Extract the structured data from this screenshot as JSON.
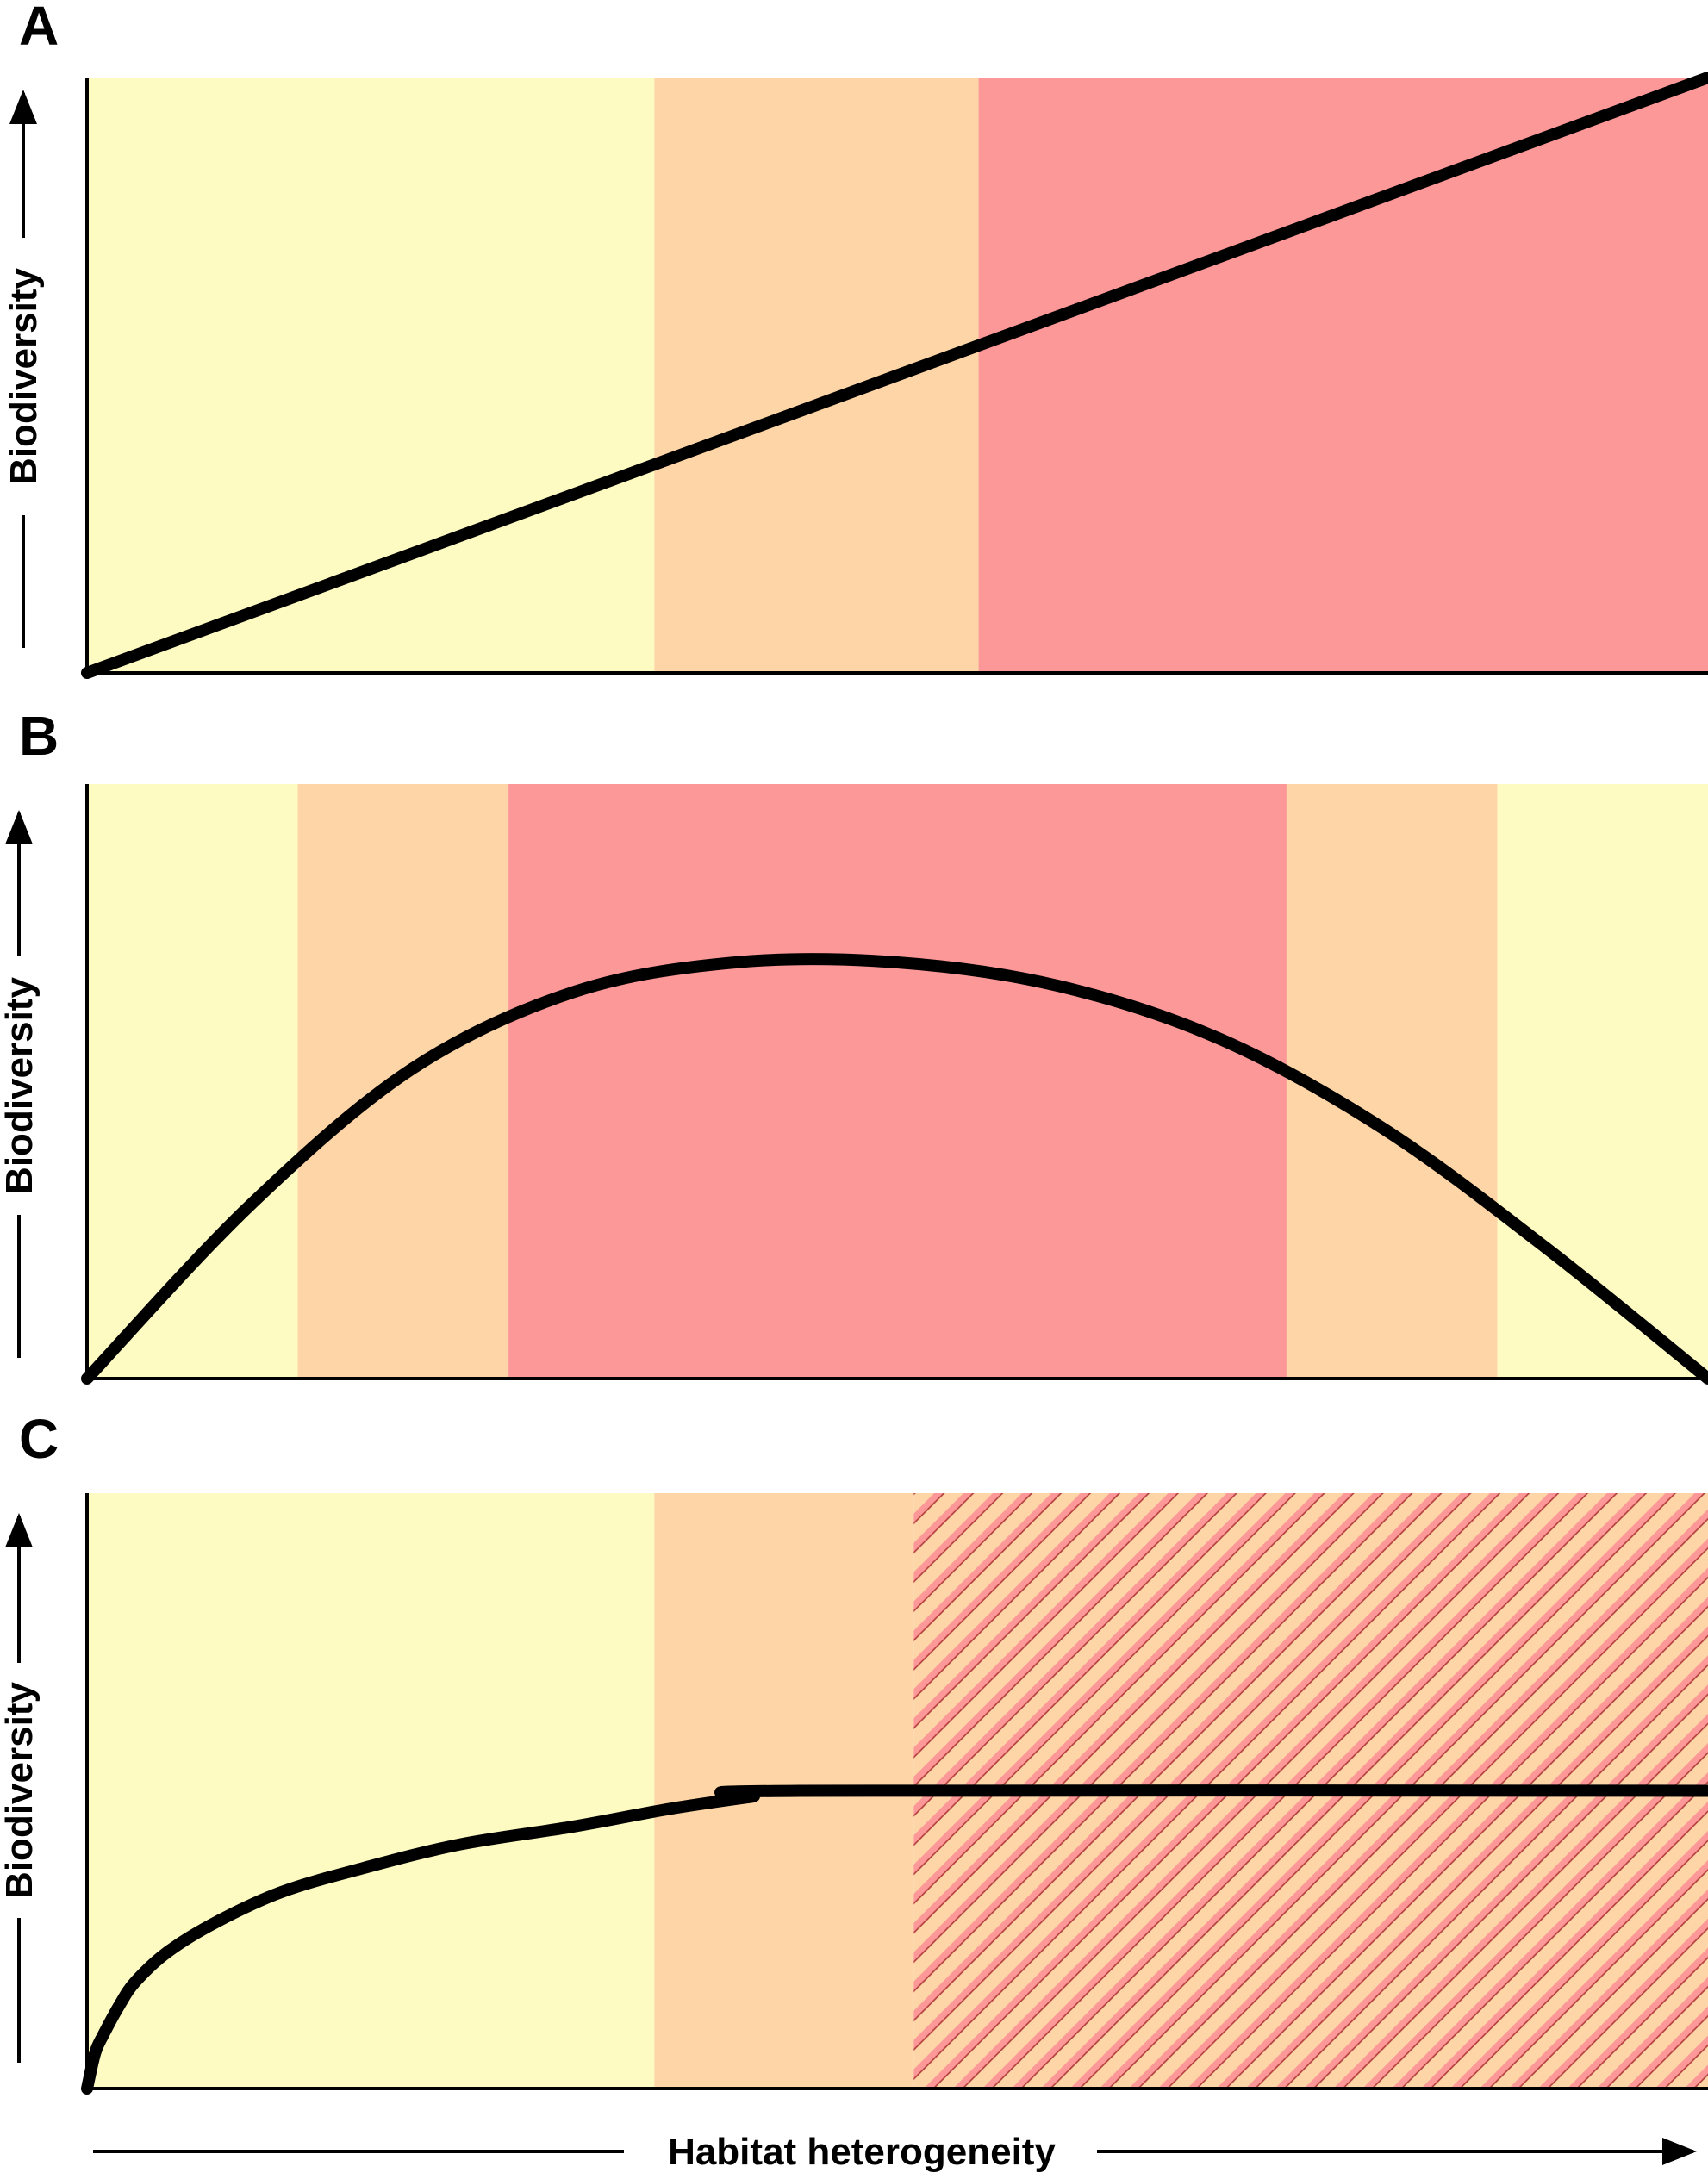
{
  "figure": {
    "xlabel": "Habitat heterogeneity",
    "ylabel": "Biodiversity",
    "colors": {
      "low": "#fdfac2",
      "mid": "#fdd5a6",
      "high": "#fd9898",
      "hatch": "#b03a3a",
      "curve": "#000000"
    }
  },
  "chart_data": [
    {
      "panel": "A",
      "type": "line",
      "ylabel": "Biodiversity",
      "xlabel": "Habitat heterogeneity",
      "xlim": [
        0,
        1
      ],
      "ylim": [
        0,
        1
      ],
      "bands": [
        {
          "from": 0.0,
          "to": 0.35,
          "level": "low"
        },
        {
          "from": 0.35,
          "to": 0.55,
          "level": "mid"
        },
        {
          "from": 0.55,
          "to": 1.0,
          "level": "high"
        }
      ],
      "series": [
        {
          "x": [
            0,
            1
          ],
          "y": [
            0,
            1
          ]
        }
      ]
    },
    {
      "panel": "B",
      "type": "line",
      "ylabel": "Biodiversity",
      "xlabel": "Habitat heterogeneity",
      "xlim": [
        0,
        1
      ],
      "ylim": [
        0,
        1
      ],
      "bands": [
        {
          "from": 0.0,
          "to": 0.13,
          "level": "low"
        },
        {
          "from": 0.13,
          "to": 0.26,
          "level": "mid"
        },
        {
          "from": 0.26,
          "to": 0.74,
          "level": "high"
        },
        {
          "from": 0.74,
          "to": 0.87,
          "level": "mid"
        },
        {
          "from": 0.87,
          "to": 1.0,
          "level": "low"
        }
      ],
      "series": [
        {
          "x": [
            0,
            0.1,
            0.2,
            0.3,
            0.4,
            0.5,
            0.6,
            0.7,
            0.8,
            0.9,
            1.0
          ],
          "y": [
            0,
            0.29,
            0.52,
            0.65,
            0.7,
            0.7,
            0.66,
            0.57,
            0.42,
            0.22,
            0
          ]
        }
      ]
    },
    {
      "panel": "C",
      "type": "line",
      "ylabel": "Biodiversity",
      "xlabel": "Habitat heterogeneity",
      "xlim": [
        0,
        1
      ],
      "ylim": [
        0,
        1
      ],
      "bands": [
        {
          "from": 0.0,
          "to": 0.35,
          "level": "low"
        },
        {
          "from": 0.35,
          "to": 0.51,
          "level": "mid"
        },
        {
          "from": 0.51,
          "to": 1.0,
          "level": "mid",
          "hatched": true
        }
      ],
      "series": [
        {
          "x": [
            0,
            0.005,
            0.01,
            0.02,
            0.03,
            0.05,
            0.08,
            0.12,
            0.17,
            0.23,
            0.3,
            0.36,
            0.41,
            0.44,
            1.0
          ],
          "y": [
            0,
            0.06,
            0.09,
            0.14,
            0.18,
            0.23,
            0.28,
            0.33,
            0.37,
            0.41,
            0.44,
            0.47,
            0.49,
            0.5,
            0.5
          ]
        }
      ]
    }
  ]
}
